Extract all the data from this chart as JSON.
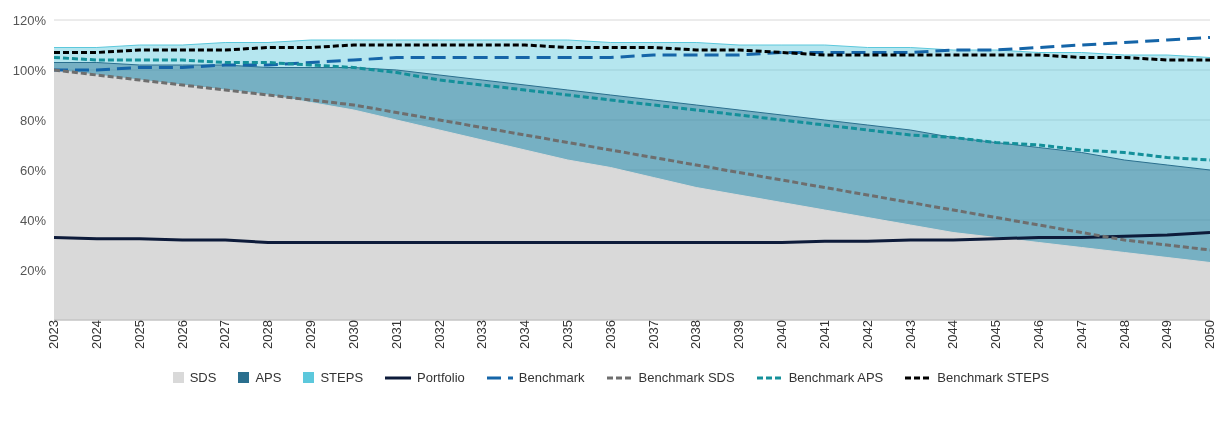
{
  "chart_data": {
    "type": "line",
    "categories": [
      "2023",
      "2024",
      "2025",
      "2026",
      "2027",
      "2028",
      "2029",
      "2030",
      "2031",
      "2032",
      "2033",
      "2034",
      "2035",
      "2036",
      "2037",
      "2038",
      "2039",
      "2040",
      "2041",
      "2042",
      "2043",
      "2044",
      "2045",
      "2046",
      "2047",
      "2048",
      "2049",
      "2050"
    ],
    "series": [
      {
        "name": "SDS",
        "type": "area",
        "color": "#d9d9d9",
        "values": [
          100,
          98,
          96,
          94,
          92,
          90,
          87,
          84,
          80,
          76,
          72,
          68,
          64,
          61,
          57,
          53,
          50,
          47,
          44,
          41,
          38,
          35,
          33,
          31,
          29,
          27,
          25,
          23
        ]
      },
      {
        "name": "APS",
        "type": "area",
        "color": "#2a6f8e",
        "values": [
          103,
          103,
          102,
          102,
          102,
          101,
          101,
          101,
          100,
          98,
          96,
          94,
          92,
          90,
          88,
          86,
          84,
          82,
          80,
          78,
          76,
          73,
          71,
          69,
          67,
          64,
          62,
          60
        ]
      },
      {
        "name": "STEPS",
        "type": "area",
        "color": "#5cc8dc",
        "values": [
          109,
          109,
          110,
          110,
          111,
          111,
          112,
          112,
          112,
          112,
          112,
          112,
          112,
          111,
          111,
          111,
          110,
          110,
          110,
          109,
          109,
          108,
          108,
          107,
          107,
          106,
          106,
          105
        ]
      },
      {
        "name": "Portfolio",
        "color": "#0d1b3a",
        "line_style": "solid",
        "values": [
          33,
          32.5,
          32.5,
          32,
          32,
          31,
          31,
          31,
          31,
          31,
          31,
          31,
          31,
          31,
          31,
          31,
          31,
          31,
          31.5,
          31.5,
          32,
          32,
          32.5,
          33,
          33,
          33.5,
          34,
          35
        ]
      },
      {
        "name": "Benchmark",
        "color": "#1565a8",
        "line_style": "dashed",
        "values": [
          100,
          100,
          101,
          101,
          102,
          102,
          103,
          104,
          105,
          105,
          105,
          105,
          105,
          105,
          106,
          106,
          106,
          107,
          107,
          107,
          107,
          108,
          108,
          109,
          110,
          111,
          112,
          113
        ]
      },
      {
        "name": "Benchmark SDS",
        "color": "#6e6e6e",
        "line_style": "dotted",
        "values": [
          100,
          98,
          96,
          94,
          92,
          90,
          88,
          86,
          83,
          80,
          77,
          74,
          71,
          68,
          65,
          62,
          59,
          56,
          53,
          50,
          47,
          44,
          41,
          38,
          35,
          32,
          30,
          28
        ]
      },
      {
        "name": "Benchmark APS",
        "color": "#14909a",
        "line_style": "dotted",
        "values": [
          105,
          104,
          104,
          104,
          103,
          103,
          102,
          101,
          99,
          96,
          94,
          92,
          90,
          88,
          86,
          84,
          82,
          80,
          78,
          76,
          74,
          73,
          71,
          70,
          68,
          67,
          65,
          64
        ]
      },
      {
        "name": "Benchmark STEPS",
        "color": "#000000",
        "line_style": "dotted",
        "values": [
          107,
          107,
          108,
          108,
          108,
          109,
          109,
          110,
          110,
          110,
          110,
          110,
          109,
          109,
          109,
          108,
          108,
          107,
          106,
          106,
          106,
          106,
          106,
          106,
          105,
          105,
          104,
          104
        ]
      }
    ],
    "ylim": [
      0,
      120
    ],
    "yticks": [
      {
        "value": 20,
        "label": "20%"
      },
      {
        "value": 40,
        "label": "40%"
      },
      {
        "value": 60,
        "label": "60%"
      },
      {
        "value": 80,
        "label": "80%"
      },
      {
        "value": 100,
        "label": "100%"
      },
      {
        "value": 120,
        "label": "120%"
      }
    ],
    "grid": "y",
    "legend": "bottom",
    "marker": "none"
  }
}
